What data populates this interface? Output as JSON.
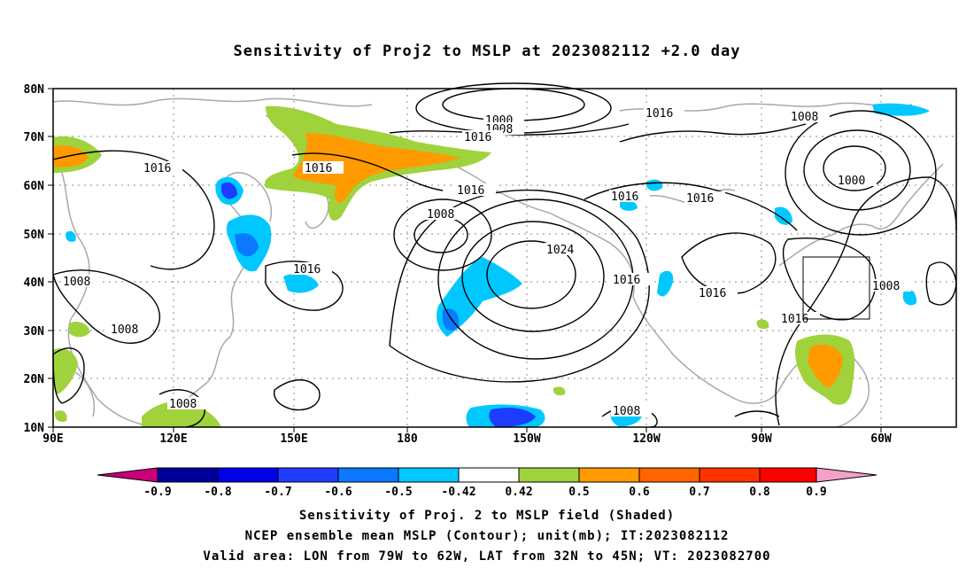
{
  "title": "Sensitivity of Proj2 to MSLP at 2023082112 +2.0 day",
  "lat_ticks": [
    "80N",
    "70N",
    "60N",
    "50N",
    "40N",
    "30N",
    "20N",
    "10N"
  ],
  "lon_ticks": [
    "90E",
    "120E",
    "150E",
    "180",
    "150W",
    "120W",
    "90W",
    "60W"
  ],
  "colorbar": {
    "labels": [
      "-0.9",
      "-0.8",
      "-0.7",
      "-0.6",
      "-0.5",
      "-0.42",
      "0.42",
      "0.5",
      "0.6",
      "0.7",
      "0.8",
      "0.9"
    ],
    "colors": [
      "#c8007a",
      "#00009c",
      "#0000e6",
      "#1e3cff",
      "#0a78ff",
      "#00c8ff",
      "#ffffff",
      "#a0d23c",
      "#ff9a00",
      "#ff6400",
      "#ff3200",
      "#ff0000",
      "#f5a0c8"
    ]
  },
  "contour_labels": [
    "1000",
    "1008",
    "1016",
    "1016",
    "1008",
    "1016",
    "1016",
    "1008",
    "1016",
    "1024",
    "1016",
    "1016",
    "1016",
    "1016",
    "1016",
    "1008",
    "1008",
    "1008",
    "1008",
    "1000",
    "1016",
    "1008"
  ],
  "captions": [
    "Sensitivity of Proj. 2 to MSLP field (Shaded)",
    "NCEP ensemble mean MSLP (Contour); unit(mb); IT:2023082112",
    "Valid area: LON from 79W to 62W, LAT from 32N to 45N; VT: 2023082700"
  ],
  "colors": {
    "coast": "#a8a8a8",
    "contour": "#000000",
    "grid": "#888888"
  }
}
